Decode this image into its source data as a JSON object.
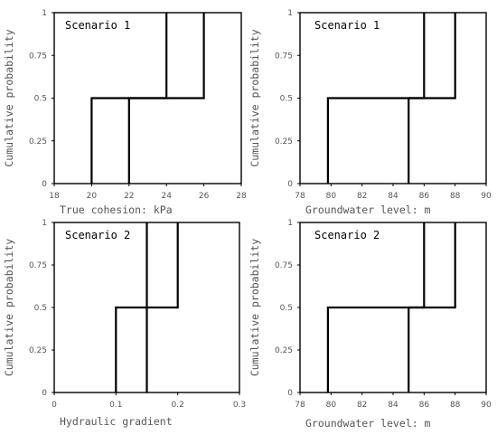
{
  "chart_data": [
    {
      "type": "line",
      "title": "Scenario 1",
      "xlabel": "True cohesion: kPa",
      "ylabel": "Cumulative probability",
      "xlim": [
        18,
        28
      ],
      "ylim": [
        0,
        1
      ],
      "x_ticks": [
        "18",
        "20",
        "22",
        "24",
        "26",
        "28"
      ],
      "y_ticks": [
        "0",
        "0.25",
        "0.5",
        "0.75",
        "1"
      ],
      "series": [
        {
          "x": [
            20,
            20,
            24,
            24
          ],
          "y": [
            0,
            0.5,
            0.5,
            1
          ]
        },
        {
          "x": [
            22,
            22,
            26,
            26
          ],
          "y": [
            0,
            0.5,
            0.5,
            1
          ]
        }
      ]
    },
    {
      "type": "line",
      "title": "Scenario 1",
      "xlabel": "Groundwater level: m",
      "ylabel": "Cumulative probability",
      "xlim": [
        78,
        90
      ],
      "ylim": [
        0,
        1
      ],
      "x_ticks": [
        "78",
        "80",
        "82",
        "84",
        "86",
        "88",
        "90"
      ],
      "y_ticks": [
        "0",
        "0.25",
        "0.5",
        "0.75",
        "1"
      ],
      "series": [
        {
          "x": [
            79.8,
            79.8,
            86,
            86
          ],
          "y": [
            0,
            0.5,
            0.5,
            1
          ]
        },
        {
          "x": [
            85,
            85,
            88,
            88
          ],
          "y": [
            0,
            0.5,
            0.5,
            1
          ]
        }
      ]
    },
    {
      "type": "line",
      "title": "Scenario 2",
      "xlabel": "Hydraulic gradient",
      "ylabel": "Cumulative probability",
      "xlim": [
        0,
        0.3
      ],
      "ylim": [
        0,
        1
      ],
      "x_ticks": [
        "0",
        "0.1",
        "0.2",
        "0.3"
      ],
      "y_ticks": [
        "0",
        "0.25",
        "0.5",
        "0.75",
        "1"
      ],
      "series": [
        {
          "x": [
            0.1,
            0.1,
            0.15,
            0.15
          ],
          "y": [
            0,
            0.5,
            0.5,
            1
          ]
        },
        {
          "x": [
            0.15,
            0.15,
            0.2,
            0.2
          ],
          "y": [
            0,
            0.5,
            0.5,
            1
          ]
        }
      ]
    },
    {
      "type": "line",
      "title": "Scenario 2",
      "xlabel": "Groundwater level: m",
      "ylabel": "Cumulative probability",
      "xlim": [
        78,
        90
      ],
      "ylim": [
        0,
        1
      ],
      "x_ticks": [
        "78",
        "80",
        "82",
        "84",
        "86",
        "88",
        "90"
      ],
      "y_ticks": [
        "0",
        "0.25",
        "0.5",
        "0.75",
        "1"
      ],
      "series": [
        {
          "x": [
            79.8,
            79.8,
            86,
            86
          ],
          "y": [
            0,
            0.5,
            0.5,
            1
          ]
        },
        {
          "x": [
            85,
            85,
            88,
            88
          ],
          "y": [
            0,
            0.5,
            0.5,
            1
          ]
        }
      ]
    }
  ]
}
